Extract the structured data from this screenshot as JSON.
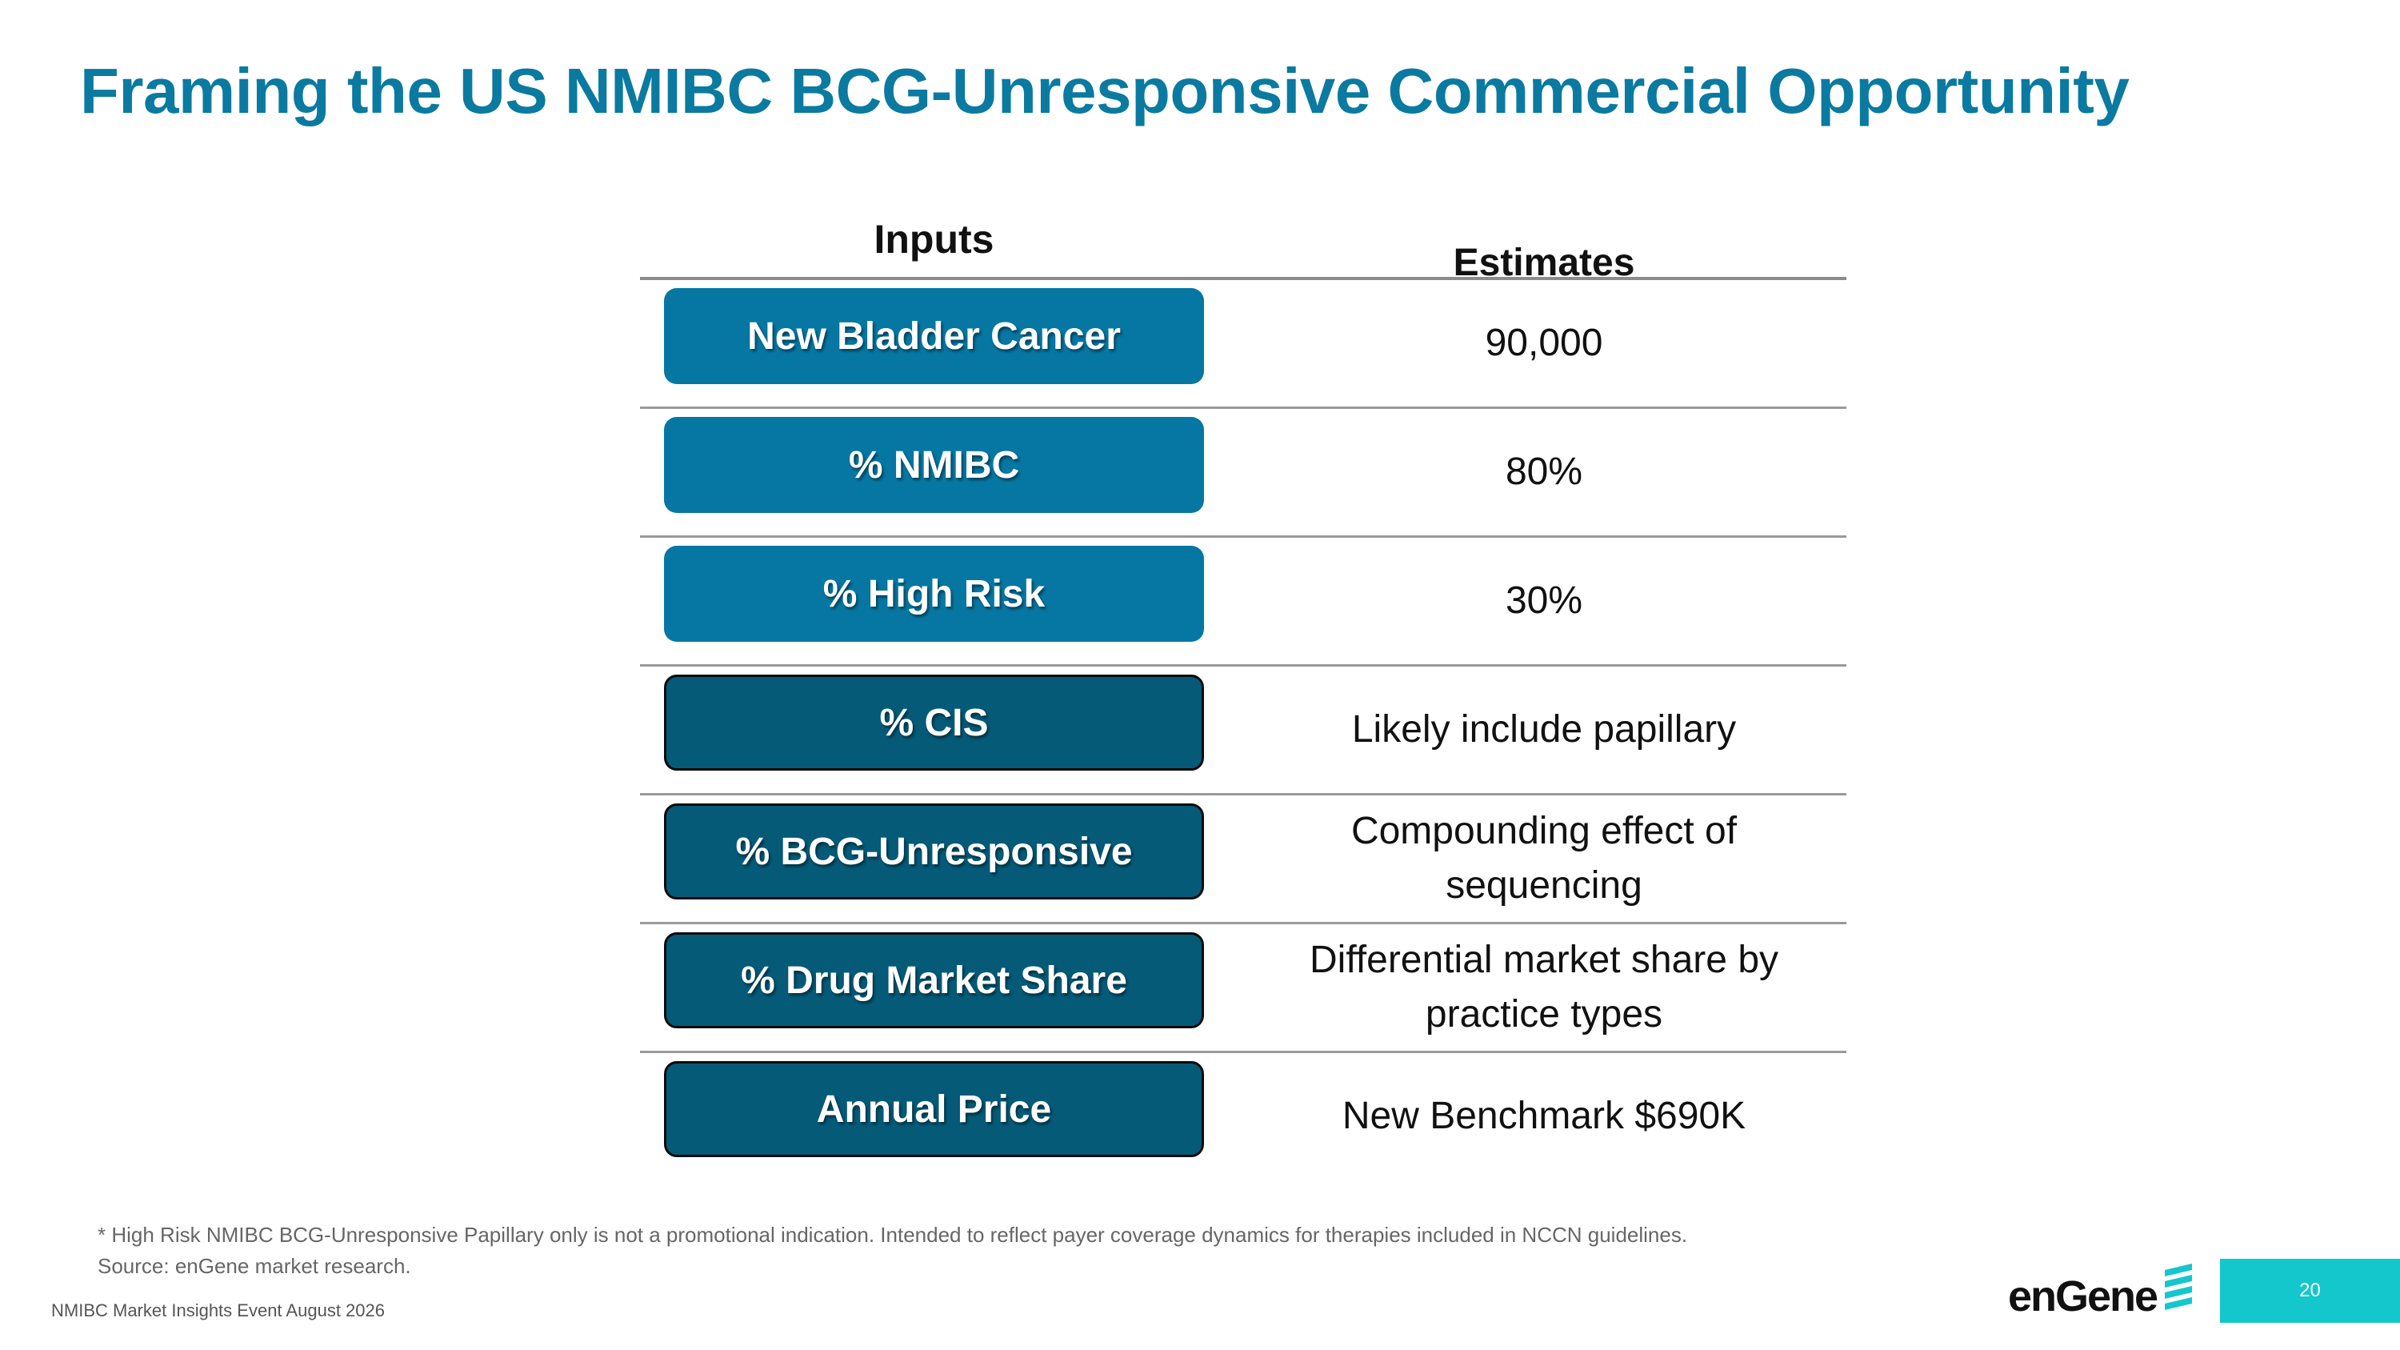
{
  "slide": {
    "title": "Framing the US NMIBC BCG-Unresponsive Commercial Opportunity",
    "page_number": "20",
    "event_label": "NMIBC Market Insights Event August 2026",
    "logo_text": "enGene"
  },
  "table": {
    "header": {
      "inputs": "Inputs",
      "estimates": "Estimates"
    },
    "rows": [
      {
        "input": "New Bladder Cancer",
        "estimate": "90,000",
        "style": "light"
      },
      {
        "input": "% NMIBC",
        "estimate": "80%",
        "style": "light"
      },
      {
        "input": "% High Risk",
        "estimate": "30%",
        "style": "light"
      },
      {
        "input": "% CIS",
        "estimate": "Likely include papillary",
        "style": "dark"
      },
      {
        "input": "% BCG-Unresponsive",
        "estimate": "Compounding effect of sequencing",
        "style": "dark"
      },
      {
        "input": "% Drug Market Share",
        "estimate": "Differential market share by practice types",
        "style": "dark"
      },
      {
        "input": "Annual Price",
        "estimate": "New Benchmark $690K",
        "style": "dark"
      }
    ]
  },
  "footnotes": {
    "line1": "* High Risk NMIBC BCG-Unresponsive Papillary only is not a promotional indication. Intended to reflect payer coverage dynamics for therapies included in NCCN guidelines.",
    "line2": "Source: enGene market research."
  },
  "colors": {
    "title": "#0b7aa0",
    "pill_light": "#0677a3",
    "pill_dark": "#055a78",
    "page_badge": "#13c7cc"
  }
}
